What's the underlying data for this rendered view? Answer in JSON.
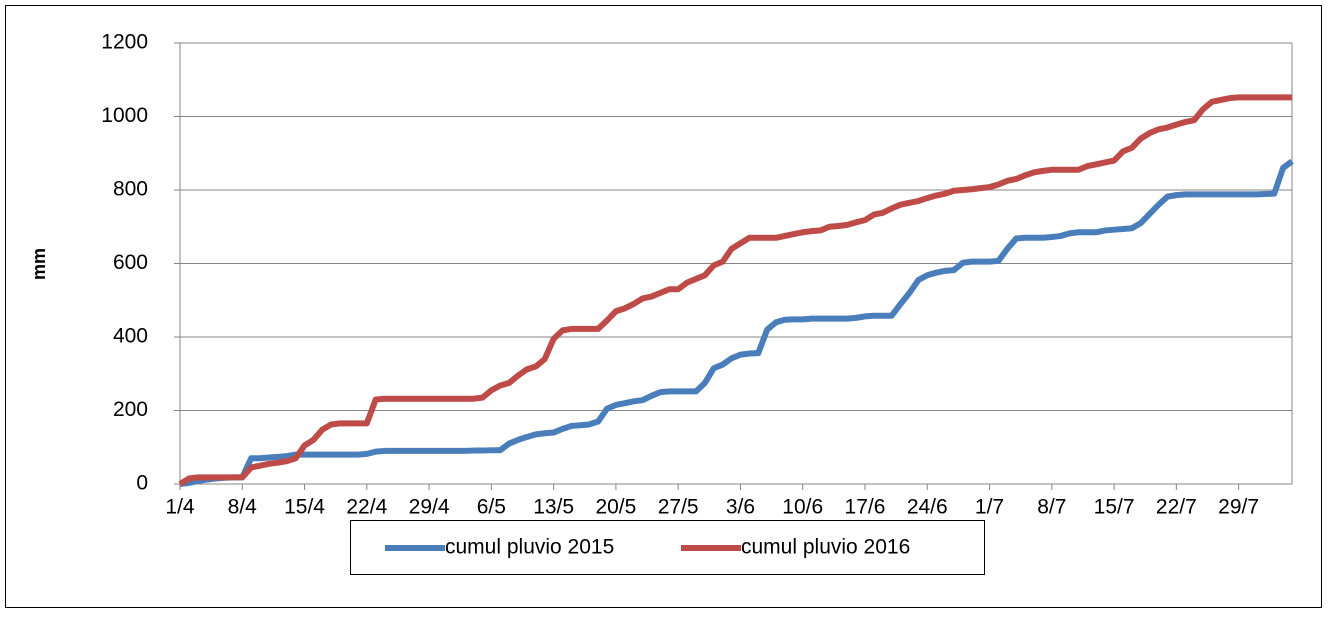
{
  "chart_data": {
    "type": "line",
    "y_label": "mm",
    "categories": [
      "1/4",
      null,
      null,
      null,
      null,
      null,
      null,
      "8/4",
      null,
      null,
      null,
      null,
      null,
      null,
      "15/4",
      null,
      null,
      null,
      null,
      null,
      null,
      "22/4",
      null,
      null,
      null,
      null,
      null,
      null,
      "29/4",
      null,
      null,
      null,
      null,
      null,
      null,
      "6/5",
      null,
      null,
      null,
      null,
      null,
      null,
      "13/5",
      null,
      null,
      null,
      null,
      null,
      null,
      "20/5",
      null,
      null,
      null,
      null,
      null,
      null,
      "27/5",
      null,
      null,
      null,
      null,
      null,
      null,
      "3/6",
      null,
      null,
      null,
      null,
      null,
      null,
      "10/6",
      null,
      null,
      null,
      null,
      null,
      null,
      "17/6",
      null,
      null,
      null,
      null,
      null,
      null,
      "24/6",
      null,
      null,
      null,
      null,
      null,
      null,
      "1/7",
      null,
      null,
      null,
      null,
      null,
      null,
      "8/7",
      null,
      null,
      null,
      null,
      null,
      null,
      "15/7",
      null,
      null,
      null,
      null,
      null,
      null,
      "22/7",
      null,
      null,
      null,
      null,
      null,
      null,
      "29/7",
      null,
      null,
      null,
      null,
      null,
      null
    ],
    "series": [
      {
        "name": "cumul pluvio 2015",
        "color": "#4a7ebb",
        "values": [
          0,
          3,
          8,
          12,
          15,
          17,
          18,
          18,
          70,
          70,
          72,
          74,
          76,
          80,
          80,
          80,
          80,
          80,
          80,
          80,
          80,
          82,
          88,
          90,
          90,
          90,
          90,
          90,
          90,
          90,
          90,
          90,
          90,
          91,
          91,
          92,
          92,
          110,
          120,
          128,
          135,
          138,
          140,
          150,
          158,
          160,
          162,
          170,
          205,
          215,
          220,
          225,
          228,
          240,
          250,
          252,
          252,
          252,
          252,
          275,
          315,
          325,
          342,
          352,
          355,
          356,
          420,
          440,
          447,
          448,
          448,
          450,
          450,
          450,
          450,
          450,
          452,
          456,
          458,
          458,
          458,
          490,
          520,
          555,
          568,
          575,
          580,
          582,
          602,
          605,
          605,
          605,
          607,
          640,
          668,
          670,
          670,
          670,
          672,
          675,
          682,
          685,
          685,
          685,
          690,
          692,
          694,
          696,
          710,
          735,
          760,
          782,
          786,
          788,
          788,
          788,
          788,
          788,
          788,
          788,
          788,
          788,
          789,
          790,
          860,
          878
        ]
      },
      {
        "name": "cumul pluvio 2016",
        "color": "#be4b48",
        "values": [
          0,
          15,
          18,
          18,
          18,
          18,
          18,
          18,
          45,
          50,
          55,
          58,
          62,
          70,
          105,
          120,
          148,
          162,
          165,
          165,
          165,
          165,
          230,
          232,
          232,
          232,
          232,
          232,
          232,
          232,
          232,
          232,
          232,
          232,
          235,
          255,
          268,
          275,
          295,
          312,
          320,
          340,
          395,
          418,
          422,
          422,
          422,
          422,
          445,
          470,
          478,
          490,
          505,
          510,
          520,
          530,
          530,
          548,
          558,
          568,
          595,
          605,
          640,
          655,
          670,
          670,
          670,
          670,
          675,
          680,
          685,
          688,
          690,
          700,
          702,
          705,
          712,
          718,
          733,
          738,
          750,
          760,
          765,
          770,
          778,
          785,
          790,
          798,
          800,
          802,
          805,
          808,
          815,
          825,
          830,
          840,
          848,
          852,
          855,
          855,
          855,
          855,
          865,
          870,
          875,
          880,
          905,
          915,
          940,
          955,
          965,
          970,
          978,
          985,
          990,
          1020,
          1040,
          1045,
          1050,
          1052,
          1052,
          1052,
          1052,
          1052,
          1052,
          1052
        ]
      }
    ],
    "ylim": [
      0,
      1200
    ],
    "yticks": [
      0,
      200,
      400,
      600,
      800,
      1000,
      1200
    ],
    "grid": true
  }
}
